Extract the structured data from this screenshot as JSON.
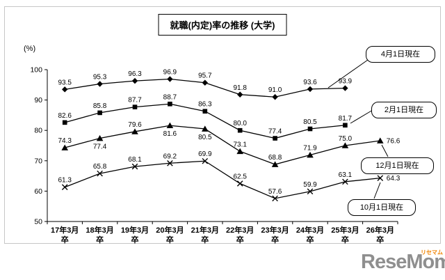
{
  "title": "就職(内定)率の推移 (大学)",
  "y_axis_unit": "(%)",
  "logo": {
    "brand": "ReseMom",
    "kana": "リセマム"
  },
  "chart_data": {
    "type": "line",
    "title": "就職(内定)率の推移 (大学)",
    "xlabel": "",
    "ylabel": "(%)",
    "ylim": [
      50,
      100
    ],
    "yticks": [
      50,
      60,
      70,
      80,
      90,
      100
    ],
    "grid": false,
    "legend_position": "right-annotation-boxes",
    "categories": [
      "17年3月卒",
      "18年3月卒",
      "19年3月卒",
      "20年3月卒",
      "21年3月卒",
      "22年3月卒",
      "23年3月卒",
      "24年3月卒",
      "25年3月卒",
      "26年3月卒"
    ],
    "series": [
      {
        "name": "4月1日現在",
        "marker": "diamond",
        "color": "#000000",
        "values": [
          93.5,
          95.3,
          96.3,
          96.9,
          95.7,
          91.8,
          91.0,
          93.6,
          93.9,
          null
        ],
        "labels": [
          "93.5",
          "95.3",
          "96.3",
          "96.9",
          "95.7",
          "91.8",
          "91.0",
          "93.6",
          "93.9",
          null
        ]
      },
      {
        "name": "2月1日現在",
        "marker": "square",
        "color": "#000000",
        "values": [
          82.6,
          85.8,
          87.7,
          88.7,
          86.3,
          80.0,
          77.4,
          80.5,
          81.7,
          null
        ],
        "labels": [
          "82.6",
          "85.8",
          "87.7",
          "88.7",
          "86.3",
          "80.0",
          "77.4",
          "80.5",
          "81.7",
          null
        ]
      },
      {
        "name": "12月1日現在",
        "marker": "triangle",
        "color": "#000000",
        "values": [
          74.3,
          77.4,
          79.6,
          81.6,
          80.5,
          73.1,
          68.8,
          71.9,
          75.0,
          76.6
        ],
        "labels": [
          "74.3",
          "77.4",
          "79.6",
          "81.6",
          "80.5",
          "73.1",
          "68.8",
          "71.9",
          "75.0",
          "76.6"
        ]
      },
      {
        "name": "10月1日現在",
        "marker": "x",
        "color": "#000000",
        "values": [
          61.3,
          65.8,
          68.1,
          69.2,
          69.9,
          62.5,
          57.6,
          59.9,
          63.1,
          64.3
        ],
        "labels": [
          "61.3",
          "65.8",
          "68.1",
          "69.2",
          "69.9",
          "62.5",
          "57.6",
          "59.9",
          "63.1",
          "64.3"
        ]
      }
    ]
  }
}
